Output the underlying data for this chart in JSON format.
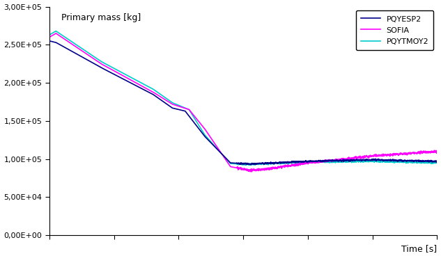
{
  "title": "Primary mass [kg]",
  "xlabel": "Time [s]",
  "ylabel": "",
  "ylim": [
    0,
    300000
  ],
  "xlim": [
    0,
    300000
  ],
  "yticks": [
    0,
    50000,
    100000,
    150000,
    200000,
    250000,
    300000
  ],
  "xticks": [
    0,
    50000,
    100000,
    150000,
    200000,
    250000,
    300000
  ],
  "series": [
    {
      "label": "PQYESP2",
      "color": "#00008B",
      "lw": 1.2
    },
    {
      "label": "SOFIA",
      "color": "#FF00FF",
      "lw": 1.2
    },
    {
      "label": "PQYTMOY2",
      "color": "#00CCCC",
      "lw": 1.2
    }
  ],
  "legend_loc": "upper right",
  "bg_color": "#FFFFFF",
  "grid": false,
  "noise_seed": 7
}
